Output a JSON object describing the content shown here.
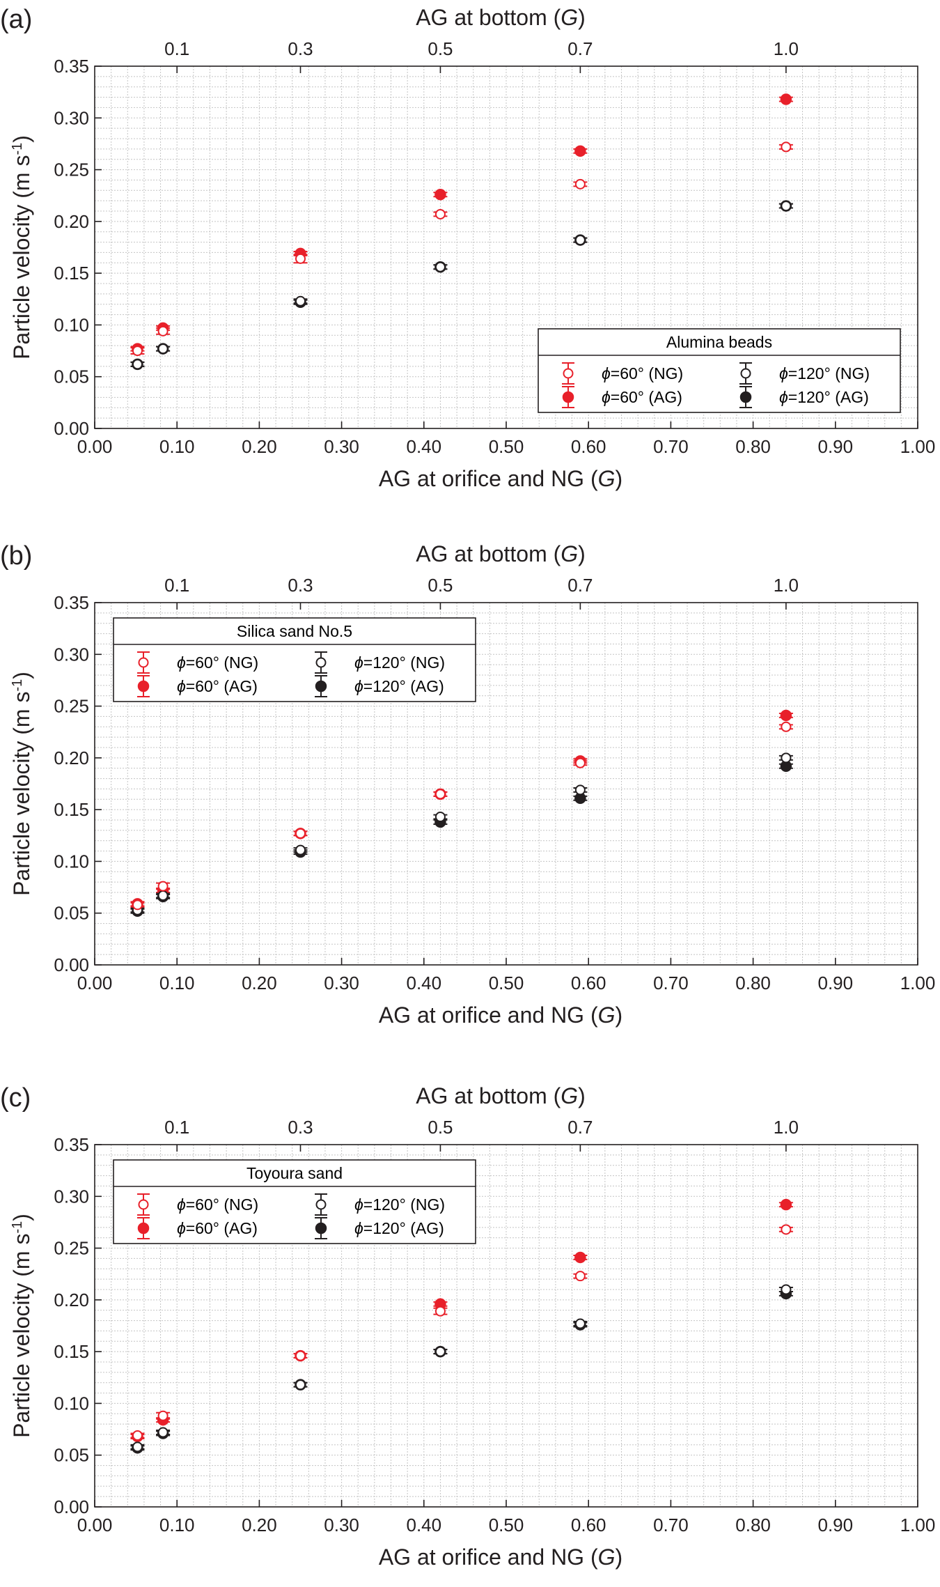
{
  "chart_data": [
    {
      "type": "scatter",
      "panel_label": "(a)",
      "title": "",
      "top_axis_label": "AG at bottom (G)",
      "top_ticks": [
        {
          "x": 0.1,
          "label": "0.1"
        },
        {
          "x": 0.25,
          "label": "0.3"
        },
        {
          "x": 0.42,
          "label": "0.5"
        },
        {
          "x": 0.59,
          "label": "0.7"
        },
        {
          "x": 0.84,
          "label": "1.0"
        }
      ],
      "xlabel": "AG at orifice and NG (G)",
      "ylabel": "Particle velocity (m s-1)",
      "xlim": [
        0,
        1.0
      ],
      "ylim": [
        0,
        0.35
      ],
      "xticks": [
        "0.00",
        "0.10",
        "0.20",
        "0.30",
        "0.40",
        "0.50",
        "0.60",
        "0.70",
        "0.80",
        "0.90",
        "1.00"
      ],
      "yticks": [
        "0.00",
        "0.05",
        "0.10",
        "0.15",
        "0.20",
        "0.25",
        "0.30",
        "0.35"
      ],
      "grid": true,
      "legend_title": "Alumina beads",
      "legend_position": "bottom-right",
      "series": [
        {
          "name": "ϕ=60° (NG)",
          "color": "#e8202a",
          "marker": "open-circle",
          "x": [
            0.052,
            0.083,
            0.25,
            0.42,
            0.59,
            0.84
          ],
          "y": [
            0.075,
            0.094,
            0.164,
            0.207,
            0.236,
            0.272
          ],
          "err": [
            0.003,
            0.003,
            0.004,
            0.002,
            0.002,
            0.002
          ]
        },
        {
          "name": "ϕ=60° (AG)",
          "color": "#e8202a",
          "marker": "filled-circle",
          "x": [
            0.052,
            0.083,
            0.25,
            0.42,
            0.59,
            0.84
          ],
          "y": [
            0.077,
            0.097,
            0.169,
            0.226,
            0.268,
            0.318
          ],
          "err": [
            0.002,
            0.002,
            0.002,
            0.002,
            0.002,
            0.002
          ]
        },
        {
          "name": "ϕ=120° (NG)",
          "color": "#231f20",
          "marker": "open-circle",
          "x": [
            0.052,
            0.083,
            0.25,
            0.42,
            0.59,
            0.84
          ],
          "y": [
            0.062,
            0.077,
            0.123,
            0.156,
            0.182,
            0.215
          ],
          "err": [
            0.002,
            0.002,
            0.002,
            0.002,
            0.002,
            0.002
          ]
        },
        {
          "name": "ϕ=120° (AG)",
          "color": "#231f20",
          "marker": "filled-circle",
          "x": [
            0.052,
            0.083,
            0.25,
            0.42,
            0.59,
            0.84
          ],
          "y": [
            0.062,
            0.077,
            0.122,
            0.156,
            0.182,
            0.215
          ],
          "err": [
            0.002,
            0.002,
            0.002,
            0.002,
            0.002,
            0.002
          ]
        }
      ]
    },
    {
      "type": "scatter",
      "panel_label": "(b)",
      "title": "",
      "top_axis_label": "AG at bottom (G)",
      "top_ticks": [
        {
          "x": 0.1,
          "label": "0.1"
        },
        {
          "x": 0.25,
          "label": "0.3"
        },
        {
          "x": 0.42,
          "label": "0.5"
        },
        {
          "x": 0.59,
          "label": "0.7"
        },
        {
          "x": 0.84,
          "label": "1.0"
        }
      ],
      "xlabel": "AG at orifice and NG (G)",
      "ylabel": "Particle velocity (m s-1)",
      "xlim": [
        0,
        1.0
      ],
      "ylim": [
        0,
        0.35
      ],
      "xticks": [
        "0.00",
        "0.10",
        "0.20",
        "0.30",
        "0.40",
        "0.50",
        "0.60",
        "0.70",
        "0.80",
        "0.90",
        "1.00"
      ],
      "yticks": [
        "0.00",
        "0.05",
        "0.10",
        "0.15",
        "0.20",
        "0.25",
        "0.30",
        "0.35"
      ],
      "grid": true,
      "legend_title": "Silica sand No.5",
      "legend_position": "top-left",
      "series": [
        {
          "name": "ϕ=60° (NG)",
          "color": "#e8202a",
          "marker": "open-circle",
          "x": [
            0.052,
            0.083,
            0.25,
            0.42,
            0.59,
            0.84
          ],
          "y": [
            0.058,
            0.076,
            0.127,
            0.165,
            0.195,
            0.23
          ],
          "err": [
            0.002,
            0.003,
            0.002,
            0.002,
            0.002,
            0.002
          ]
        },
        {
          "name": "ϕ=60° (AG)",
          "color": "#e8202a",
          "marker": "filled-circle",
          "x": [
            0.052,
            0.083,
            0.25,
            0.42,
            0.59,
            0.84
          ],
          "y": [
            0.059,
            0.072,
            0.127,
            0.165,
            0.197,
            0.241
          ],
          "err": [
            0.002,
            0.002,
            0.002,
            0.002,
            0.002,
            0.002
          ]
        },
        {
          "name": "ϕ=120° (NG)",
          "color": "#231f20",
          "marker": "open-circle",
          "x": [
            0.052,
            0.083,
            0.25,
            0.42,
            0.59,
            0.84
          ],
          "y": [
            0.053,
            0.067,
            0.111,
            0.143,
            0.169,
            0.2
          ],
          "err": [
            0.002,
            0.002,
            0.002,
            0.002,
            0.002,
            0.002
          ]
        },
        {
          "name": "ϕ=120° (AG)",
          "color": "#231f20",
          "marker": "filled-circle",
          "x": [
            0.052,
            0.083,
            0.25,
            0.42,
            0.59,
            0.84
          ],
          "y": [
            0.052,
            0.066,
            0.109,
            0.138,
            0.161,
            0.192
          ],
          "err": [
            0.002,
            0.002,
            0.002,
            0.002,
            0.002,
            0.002
          ]
        }
      ]
    },
    {
      "type": "scatter",
      "panel_label": "(c)",
      "title": "",
      "top_axis_label": "AG at bottom (G)",
      "top_ticks": [
        {
          "x": 0.1,
          "label": "0.1"
        },
        {
          "x": 0.25,
          "label": "0.3"
        },
        {
          "x": 0.42,
          "label": "0.5"
        },
        {
          "x": 0.59,
          "label": "0.7"
        },
        {
          "x": 0.84,
          "label": "1.0"
        }
      ],
      "xlabel": "AG at orifice and NG (G)",
      "ylabel": "Particle velocity (m s-1)",
      "xlim": [
        0,
        1.0
      ],
      "ylim": [
        0,
        0.35
      ],
      "xticks": [
        "0.00",
        "0.10",
        "0.20",
        "0.30",
        "0.40",
        "0.50",
        "0.60",
        "0.70",
        "0.80",
        "0.90",
        "1.00"
      ],
      "yticks": [
        "0.00",
        "0.05",
        "0.10",
        "0.15",
        "0.20",
        "0.25",
        "0.30",
        "0.35"
      ],
      "grid": true,
      "legend_title": "Toyoura sand",
      "legend_position": "top-left",
      "series": [
        {
          "name": "ϕ=60° (NG)",
          "color": "#e8202a",
          "marker": "open-circle",
          "x": [
            0.052,
            0.083,
            0.25,
            0.42,
            0.59,
            0.84
          ],
          "y": [
            0.069,
            0.088,
            0.146,
            0.189,
            0.223,
            0.268
          ],
          "err": [
            0.002,
            0.003,
            0.002,
            0.003,
            0.002,
            0.002
          ]
        },
        {
          "name": "ϕ=60° (AG)",
          "color": "#e8202a",
          "marker": "filled-circle",
          "x": [
            0.052,
            0.083,
            0.25,
            0.42,
            0.59,
            0.84
          ],
          "y": [
            0.068,
            0.084,
            0.146,
            0.196,
            0.241,
            0.292
          ],
          "err": [
            0.002,
            0.002,
            0.002,
            0.002,
            0.002,
            0.002
          ]
        },
        {
          "name": "ϕ=120° (NG)",
          "color": "#231f20",
          "marker": "open-circle",
          "x": [
            0.052,
            0.083,
            0.25,
            0.42,
            0.59,
            0.84
          ],
          "y": [
            0.058,
            0.072,
            0.118,
            0.15,
            0.177,
            0.21
          ],
          "err": [
            0.002,
            0.002,
            0.002,
            0.002,
            0.002,
            0.002
          ]
        },
        {
          "name": "ϕ=120° (AG)",
          "color": "#231f20",
          "marker": "filled-circle",
          "x": [
            0.052,
            0.083,
            0.25,
            0.42,
            0.59,
            0.84
          ],
          "y": [
            0.057,
            0.071,
            0.118,
            0.15,
            0.176,
            0.206
          ],
          "err": [
            0.002,
            0.002,
            0.002,
            0.002,
            0.002,
            0.002
          ]
        }
      ]
    }
  ]
}
